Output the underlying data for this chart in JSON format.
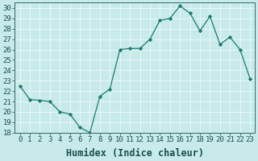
{
  "x": [
    0,
    1,
    2,
    3,
    4,
    5,
    6,
    7,
    8,
    9,
    10,
    11,
    12,
    13,
    14,
    15,
    16,
    17,
    18,
    19,
    20,
    21,
    22,
    23
  ],
  "y": [
    22.5,
    21.2,
    21.1,
    21.0,
    20.0,
    19.8,
    18.5,
    18.0,
    21.5,
    22.2,
    26.0,
    26.1,
    26.1,
    27.0,
    28.8,
    29.0,
    30.2,
    29.5,
    27.8,
    29.2,
    26.5,
    27.2,
    26.0,
    23.2
  ],
  "xlabel": "Humidex (Indice chaleur)",
  "line_color": "#1a7a6e",
  "marker": "D",
  "marker_size": 2.2,
  "bg_color": "#c8eaea",
  "grid_color": "#e8f8f8",
  "ylim": [
    18,
    30.5
  ],
  "xlim": [
    -0.5,
    23.5
  ],
  "yticks": [
    18,
    19,
    20,
    21,
    22,
    23,
    24,
    25,
    26,
    27,
    28,
    29,
    30
  ],
  "xticks": [
    0,
    1,
    2,
    3,
    4,
    5,
    6,
    7,
    8,
    9,
    10,
    11,
    12,
    13,
    14,
    15,
    16,
    17,
    18,
    19,
    20,
    21,
    22,
    23
  ],
  "tick_fontsize": 6.5,
  "xlabel_fontsize": 8.5
}
